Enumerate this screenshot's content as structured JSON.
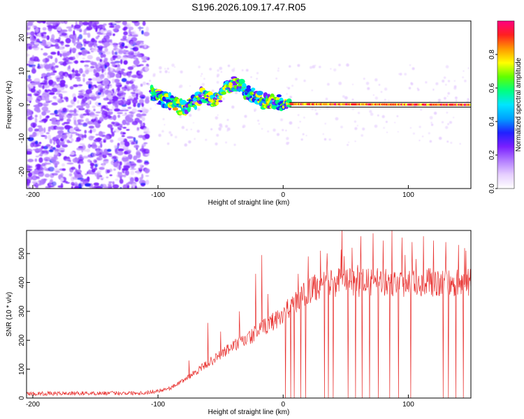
{
  "chart_data": [
    {
      "type": "heatmap",
      "title": "S196.2026.109.17.47.R05",
      "xlabel": "Height of straight line (km)",
      "ylabel": "Frequency (Hz)",
      "xlim": [
        -205,
        150
      ],
      "ylim": [
        -25,
        25
      ],
      "x_ticks": [
        -200,
        -100,
        0,
        100
      ],
      "y_ticks": [
        -20,
        -10,
        0,
        10,
        20
      ],
      "colorbar": {
        "label": "Normalized spectral amplitude",
        "range": [
          0,
          1
        ],
        "ticks": [
          "0.0",
          "0.2",
          "0.4",
          "0.6",
          "0.8"
        ],
        "tick_values": [
          0.0,
          0.2,
          0.4,
          0.6,
          0.8
        ],
        "colors": [
          "#ffffff",
          "#e6cfff",
          "#b27cff",
          "#7a1fff",
          "#2020ff",
          "#00a0ff",
          "#00e5ff",
          "#00ff80",
          "#60ff00",
          "#ffff00",
          "#ff9900",
          "#ff2020",
          "#ff0080"
        ]
      },
      "noise_region": {
        "x_from": -205,
        "x_to": -108,
        "freq_span": [
          -25,
          25
        ],
        "amplitude": [
          0.1,
          0.3
        ]
      },
      "signal_track": [
        {
          "x": -105,
          "y": 3.5
        },
        {
          "x": -100,
          "y": 2.5
        },
        {
          "x": -95,
          "y": 1.5
        },
        {
          "x": -90,
          "y": 1.0
        },
        {
          "x": -85,
          "y": 0.0
        },
        {
          "x": -80,
          "y": -1.0
        },
        {
          "x": -75,
          "y": -0.5
        },
        {
          "x": -70,
          "y": 1.0
        },
        {
          "x": -65,
          "y": 3.0
        },
        {
          "x": -60,
          "y": 2.0
        },
        {
          "x": -55,
          "y": 1.5
        },
        {
          "x": -50,
          "y": 3.0
        },
        {
          "x": -45,
          "y": 5.0
        },
        {
          "x": -40,
          "y": 6.0
        },
        {
          "x": -35,
          "y": 6.5
        },
        {
          "x": -30,
          "y": 4.0
        },
        {
          "x": -25,
          "y": 3.0
        },
        {
          "x": -20,
          "y": 2.5
        },
        {
          "x": -17,
          "y": 1.0
        },
        {
          "x": -10,
          "y": 0.8
        },
        {
          "x": -5,
          "y": 0.8
        },
        {
          "x": 0,
          "y": 0.6
        },
        {
          "x": 5,
          "y": 0.2
        },
        {
          "x": 150,
          "y": 0.0
        }
      ],
      "fit_line": {
        "x_from": 5,
        "x_to": 150,
        "y": 0.0
      }
    },
    {
      "type": "line",
      "xlabel": "Height of straight line (km)",
      "ylabel": "SNR (10 * v/v)",
      "xlim": [
        -205,
        150
      ],
      "ylim": [
        0,
        580
      ],
      "x_ticks": [
        -200,
        -100,
        0,
        100
      ],
      "y_ticks": [
        0,
        100,
        200,
        300,
        400,
        500
      ],
      "color": "#e8302e",
      "series": [
        {
          "name": "SNR",
          "profile": [
            {
              "x": -205,
              "y": 15
            },
            {
              "x": -110,
              "y": 18
            },
            {
              "x": -100,
              "y": 25
            },
            {
              "x": -90,
              "y": 35
            },
            {
              "x": -80,
              "y": 60
            },
            {
              "x": -70,
              "y": 90
            },
            {
              "x": -60,
              "y": 120
            },
            {
              "x": -50,
              "y": 150
            },
            {
              "x": -40,
              "y": 180
            },
            {
              "x": -30,
              "y": 200
            },
            {
              "x": -20,
              "y": 230
            },
            {
              "x": -10,
              "y": 260
            },
            {
              "x": 0,
              "y": 290
            },
            {
              "x": 10,
              "y": 330
            },
            {
              "x": 20,
              "y": 370
            },
            {
              "x": 30,
              "y": 390
            },
            {
              "x": 40,
              "y": 400
            },
            {
              "x": 150,
              "y": 400
            }
          ],
          "spikes": [
            {
              "x": -75,
              "y": 130
            },
            {
              "x": -60,
              "y": 260
            },
            {
              "x": -50,
              "y": 230
            },
            {
              "x": -35,
              "y": 300
            },
            {
              "x": -22,
              "y": 430
            },
            {
              "x": -17,
              "y": 495
            },
            {
              "x": -12,
              "y": 360
            },
            {
              "x": 2,
              "y": 400
            },
            {
              "x": 12,
              "y": 430
            },
            {
              "x": 20,
              "y": 490
            },
            {
              "x": 30,
              "y": 510
            },
            {
              "x": 40,
              "y": 540
            },
            {
              "x": 47,
              "y": 585
            },
            {
              "x": 55,
              "y": 520
            },
            {
              "x": 62,
              "y": 560
            },
            {
              "x": 72,
              "y": 570
            },
            {
              "x": 80,
              "y": 545
            },
            {
              "x": 87,
              "y": 580
            },
            {
              "x": 95,
              "y": 555
            },
            {
              "x": 103,
              "y": 540
            },
            {
              "x": 112,
              "y": 560
            },
            {
              "x": 120,
              "y": 545
            },
            {
              "x": 130,
              "y": 540
            },
            {
              "x": 140,
              "y": 530
            },
            {
              "x": 146,
              "y": 510
            }
          ],
          "dropouts": [
            2,
            6,
            9,
            14,
            18,
            33,
            36,
            40,
            52,
            58,
            63,
            69,
            76,
            85,
            92,
            102,
            128,
            132,
            138,
            144
          ]
        }
      ]
    }
  ]
}
